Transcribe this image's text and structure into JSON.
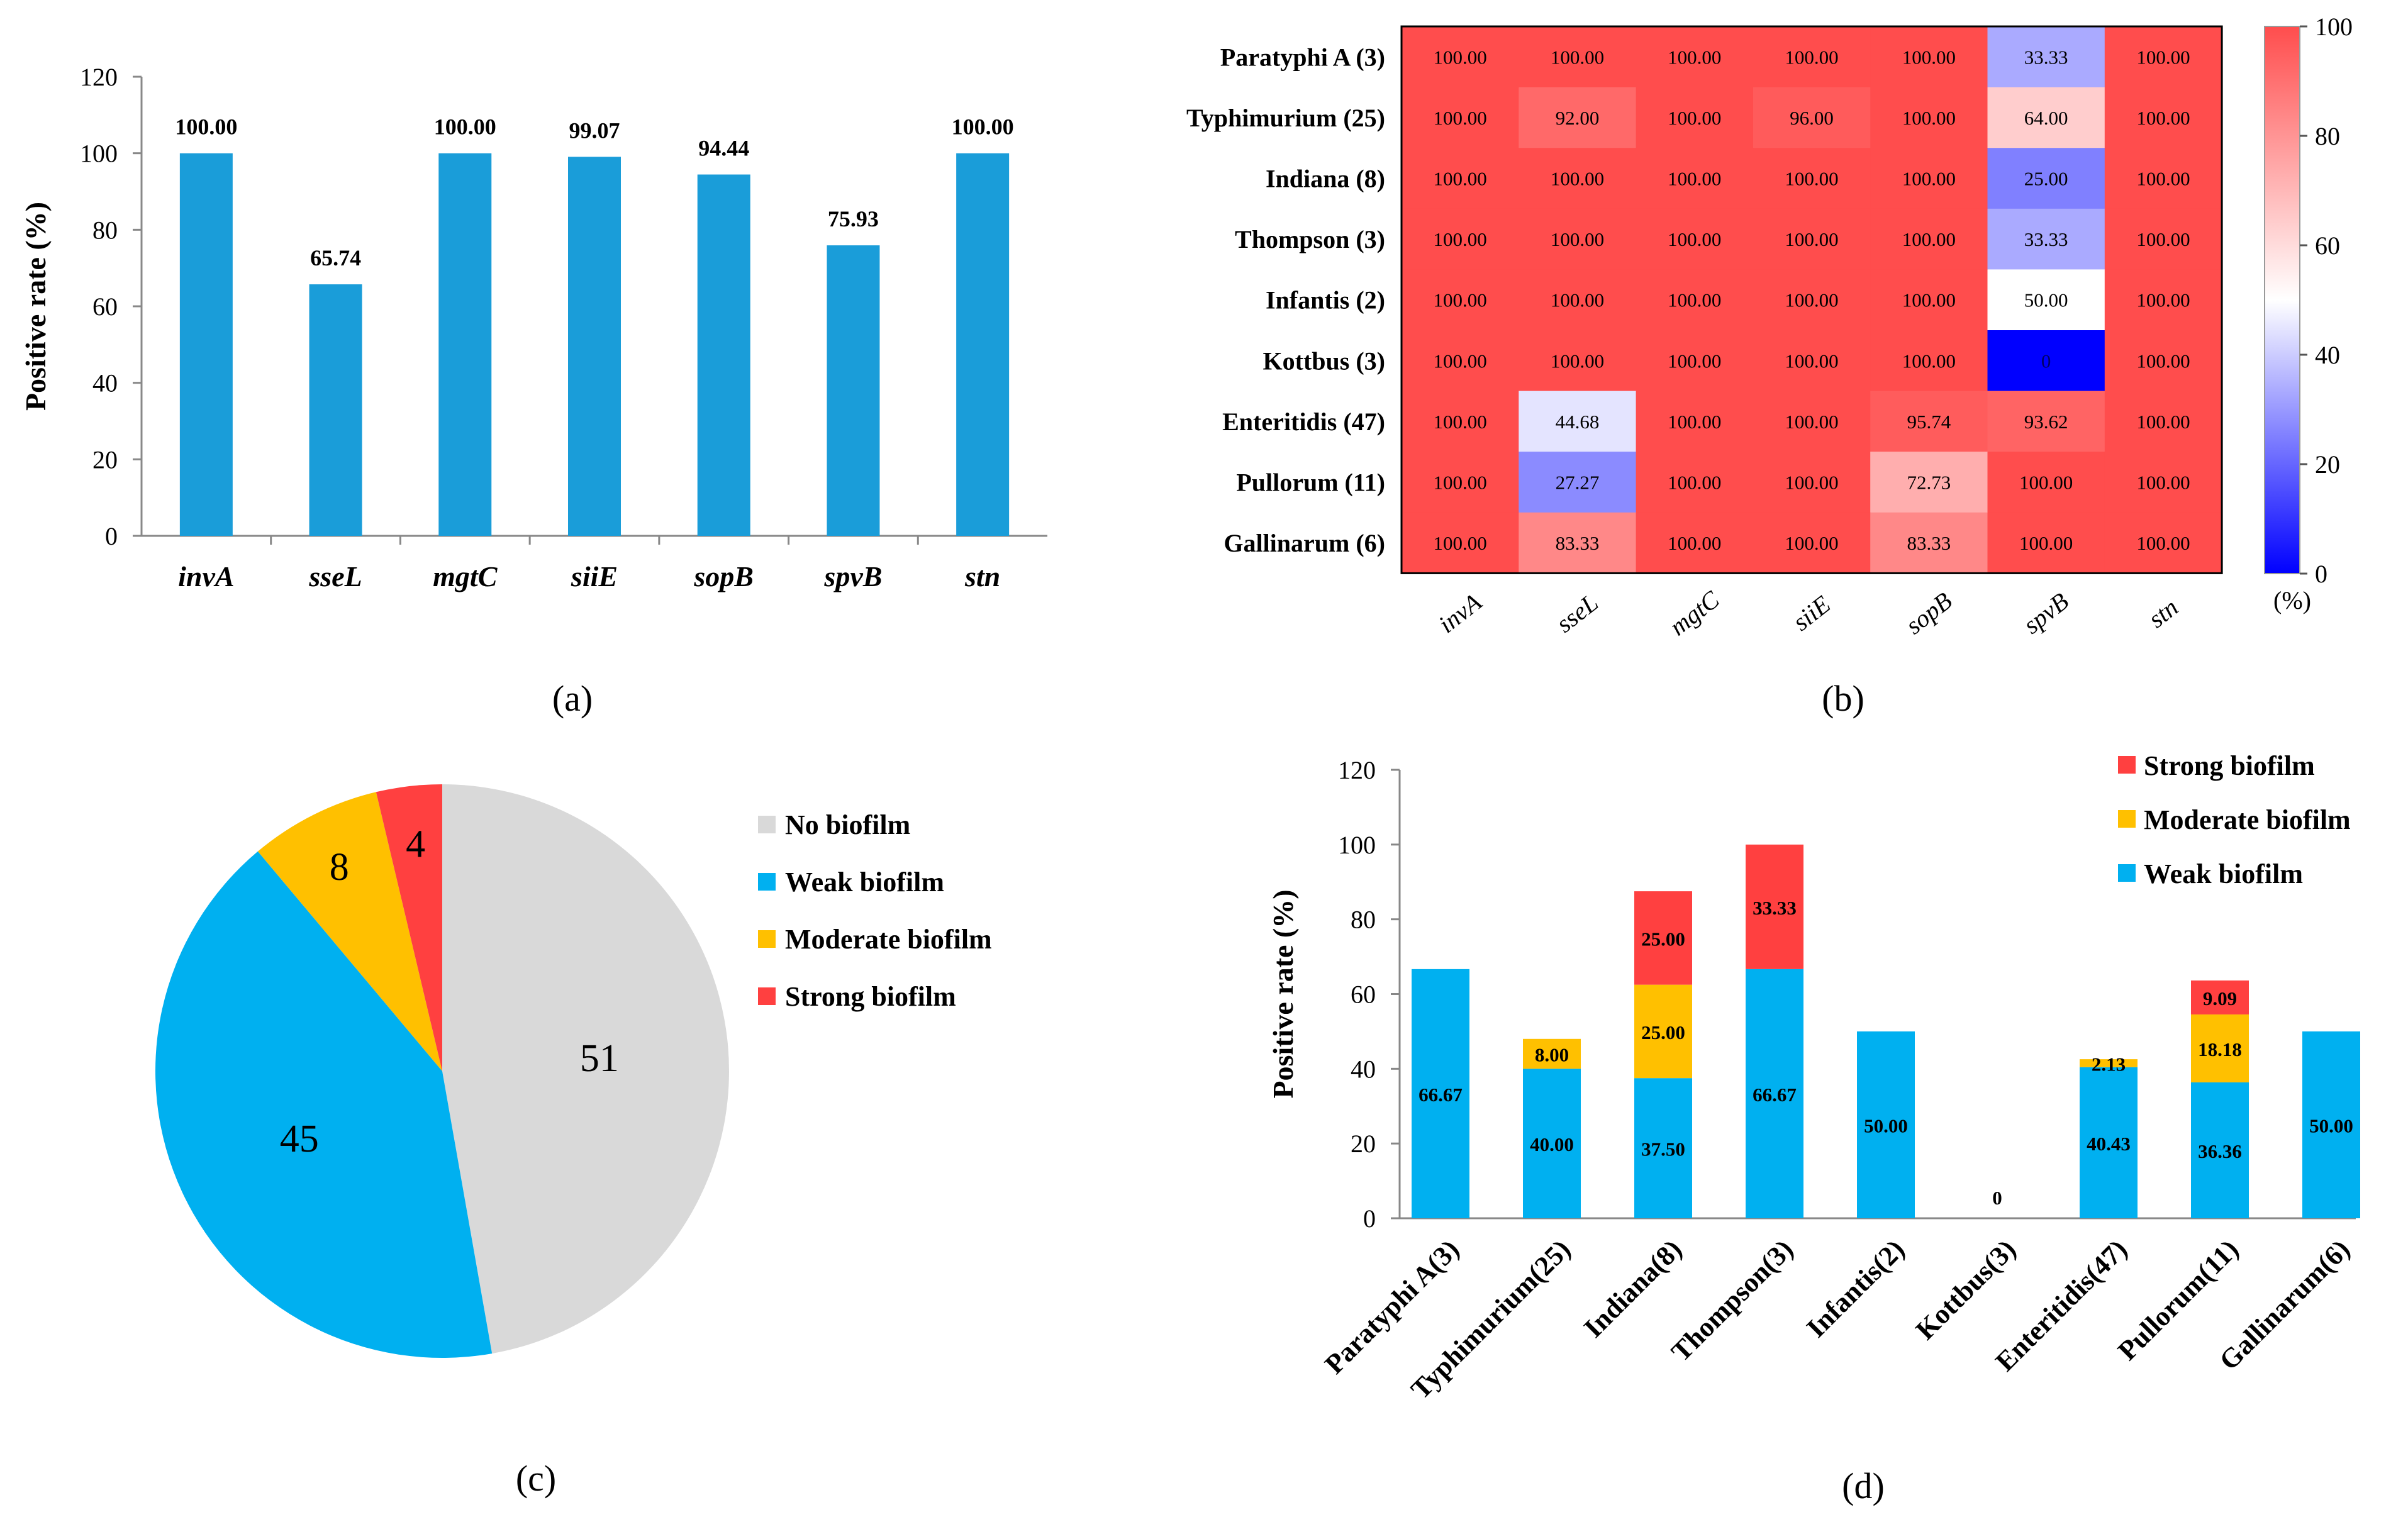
{
  "colors": {
    "bar_a": "#1a9dd9",
    "heat_low": "#0000ff",
    "heat_mid": "#ffffff",
    "heat_high": "#ff4d4d",
    "no_biofilm": "#d9d9d9",
    "weak": "#00b0f0",
    "moderate": "#ffc000",
    "strong": "#ff4040",
    "axis": "#888888",
    "text": "#000000"
  },
  "chart_data": [
    {
      "panel": "(a)",
      "type": "bar",
      "categories": [
        "invA",
        "sseL",
        "mgtC",
        "siiE",
        "sopB",
        "spvB",
        "stn"
      ],
      "values": [
        100.0,
        65.74,
        100.0,
        99.07,
        94.44,
        75.93,
        100.0
      ],
      "value_labels": [
        "100.00",
        "65.74",
        "100.00",
        "99.07",
        "94.44",
        "75.93",
        "100.00"
      ],
      "ylabel": "Positive rate (%)",
      "ylim": [
        0,
        120
      ],
      "yticks": [
        0,
        20,
        40,
        60,
        80,
        100,
        120
      ]
    },
    {
      "panel": "(b)",
      "type": "heatmap",
      "rows": [
        "Paratyphi A (3)",
        "Typhimurium (25)",
        "Indiana (8)",
        "Thompson (3)",
        "Infantis (2)",
        "Kottbus (3)",
        "Enteritidis (47)",
        "Pullorum (11)",
        "Gallinarum (6)"
      ],
      "columns": [
        "invA",
        "sseL",
        "mgtC",
        "siiE",
        "sopB",
        "spvB",
        "stn"
      ],
      "values": [
        [
          100,
          100,
          100,
          100,
          100,
          33.33,
          100
        ],
        [
          100,
          92,
          100,
          96,
          100,
          64,
          100
        ],
        [
          100,
          100,
          100,
          100,
          100,
          25,
          100
        ],
        [
          100,
          100,
          100,
          100,
          100,
          33.33,
          100
        ],
        [
          100,
          100,
          100,
          100,
          100,
          50,
          100
        ],
        [
          100,
          100,
          100,
          100,
          100,
          0,
          100
        ],
        [
          100,
          44.68,
          100,
          100,
          95.74,
          93.62,
          100
        ],
        [
          100,
          27.27,
          100,
          100,
          72.73,
          100,
          100
        ],
        [
          100,
          83.33,
          100,
          100,
          83.33,
          100,
          100
        ]
      ],
      "cell_labels": [
        [
          "100.00",
          "100.00",
          "100.00",
          "100.00",
          "100.00",
          "33.33",
          "100.00"
        ],
        [
          "100.00",
          "92.00",
          "100.00",
          "96.00",
          "100.00",
          "64.00",
          "100.00"
        ],
        [
          "100.00",
          "100.00",
          "100.00",
          "100.00",
          "100.00",
          "25.00",
          "100.00"
        ],
        [
          "100.00",
          "100.00",
          "100.00",
          "100.00",
          "100.00",
          "33.33",
          "100.00"
        ],
        [
          "100.00",
          "100.00",
          "100.00",
          "100.00",
          "100.00",
          "50.00",
          "100.00"
        ],
        [
          "100.00",
          "100.00",
          "100.00",
          "100.00",
          "100.00",
          "0",
          "100.00"
        ],
        [
          "100.00",
          "44.68",
          "100.00",
          "100.00",
          "95.74",
          "93.62",
          "100.00"
        ],
        [
          "100.00",
          "27.27",
          "100.00",
          "100.00",
          "72.73",
          "100.00",
          "100.00"
        ],
        [
          "100.00",
          "83.33",
          "100.00",
          "100.00",
          "83.33",
          "100.00",
          "100.00"
        ]
      ],
      "colorbar": {
        "range": [
          0,
          100
        ],
        "ticks": [
          0,
          20,
          40,
          60,
          80,
          100
        ],
        "label": "(%)"
      }
    },
    {
      "panel": "(c)",
      "type": "pie",
      "labels": [
        "No biofilm",
        "Weak biofilm",
        "Moderate biofilm",
        "Strong biofilm"
      ],
      "values": [
        51,
        45,
        8,
        4
      ],
      "value_labels": [
        "51",
        "45",
        "8",
        "4"
      ],
      "legend": "right"
    },
    {
      "panel": "(d)",
      "type": "bar",
      "stacked": true,
      "categories": [
        "Paratyphi A(3)",
        "Typhimurium(25)",
        "Indiana(8)",
        "Thompson(3)",
        "Infantis(2)",
        "Kottbus(3)",
        "Enteritidis(47)",
        "Pullorum(11)",
        "Gallinarum(6)"
      ],
      "series": [
        {
          "name": "Weak biofilm",
          "values": [
            66.67,
            40.0,
            37.5,
            66.67,
            50.0,
            0,
            40.43,
            36.36,
            50.0
          ],
          "labels": [
            "66.67",
            "40.00",
            "37.50",
            "66.67",
            "50.00",
            "0",
            "40.43",
            "36.36",
            "50.00"
          ]
        },
        {
          "name": "Moderate biofilm",
          "values": [
            0,
            8.0,
            25.0,
            0,
            0,
            0,
            2.13,
            18.18,
            0
          ],
          "labels": [
            "",
            "8.00",
            "25.00",
            "",
            "",
            "",
            "2.13",
            "18.18",
            ""
          ]
        },
        {
          "name": "Strong biofilm",
          "values": [
            0,
            0,
            25.0,
            33.33,
            0,
            0,
            0,
            9.09,
            0
          ],
          "labels": [
            "",
            "",
            "25.00",
            "33.33",
            "",
            "",
            "",
            "9.09",
            ""
          ]
        }
      ],
      "legend_order": [
        "Strong biofilm",
        "Moderate biofilm",
        "Weak biofilm"
      ],
      "ylabel": "Positive rate (%)",
      "ylim": [
        0,
        120
      ],
      "yticks": [
        0,
        20,
        40,
        60,
        80,
        100,
        120
      ],
      "legend": "top-right"
    }
  ]
}
